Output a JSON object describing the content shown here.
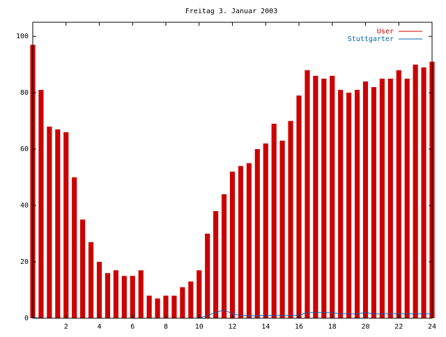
{
  "chart_data": {
    "type": "bar",
    "title": "Freitag 3. Januar 2003",
    "xlabel": "",
    "ylabel": "",
    "xlim": [
      0,
      24
    ],
    "ylim": [
      0,
      105
    ],
    "xticks": [
      "2",
      "4",
      "6",
      "8",
      "10",
      "12",
      "14",
      "16",
      "18",
      "20",
      "22",
      "24"
    ],
    "yticks": [
      "0",
      "20",
      "40",
      "60",
      "80",
      "100"
    ],
    "grid": false,
    "legend_position": "top-right",
    "series": [
      {
        "name": "User",
        "color": "#cc0000",
        "style": "bars",
        "x": [
          0.0,
          0.5,
          1.0,
          1.5,
          2.0,
          2.5,
          3.0,
          3.5,
          4.0,
          4.5,
          5.0,
          5.5,
          6.0,
          6.5,
          7.0,
          7.5,
          8.0,
          8.5,
          9.0,
          9.5,
          10.0,
          10.5,
          11.0,
          11.5,
          12.0,
          12.5,
          13.0,
          13.5,
          14.0,
          14.5,
          15.0,
          15.5,
          16.0,
          16.5,
          17.0,
          17.5,
          18.0,
          18.5,
          19.0,
          19.5,
          20.0,
          20.5,
          21.0,
          21.5,
          22.0,
          22.5,
          23.0,
          23.5,
          24.0
        ],
        "values": [
          97,
          81,
          68,
          67,
          66,
          50,
          35,
          27,
          20,
          16,
          17,
          15,
          15,
          17,
          8,
          7,
          8,
          8,
          11,
          13,
          17,
          30,
          38,
          44,
          52,
          54,
          55,
          60,
          62,
          69,
          63,
          70,
          79,
          88,
          86,
          85,
          86,
          81,
          80,
          81,
          84,
          82,
          85,
          85,
          88,
          85,
          90,
          89,
          91
        ]
      },
      {
        "name": "Stuttgarter",
        "color": "#0066b3",
        "style": "line",
        "x": [
          0.0,
          0.5,
          1.0,
          1.5,
          2.0,
          2.5,
          3.0,
          3.5,
          4.0,
          4.5,
          5.0,
          5.5,
          6.0,
          6.5,
          7.0,
          7.5,
          8.0,
          8.5,
          9.0,
          9.5,
          10.0,
          10.5,
          11.0,
          11.5,
          12.0,
          12.5,
          13.0,
          13.5,
          14.0,
          14.5,
          15.0,
          15.5,
          16.0,
          16.5,
          17.0,
          17.5,
          18.0,
          18.5,
          19.0,
          19.5,
          20.0,
          20.5,
          21.0,
          21.5,
          22.0,
          22.5,
          23.0,
          23.5,
          24.0
        ],
        "values": [
          0.3,
          0,
          0,
          0,
          0,
          0,
          0,
          0,
          0,
          0,
          0,
          0,
          0,
          0,
          0,
          0,
          0,
          0,
          0,
          0,
          0,
          1,
          2,
          3,
          1.5,
          1,
          0.8,
          0.8,
          1,
          1,
          1,
          1,
          1,
          2,
          2,
          2,
          2,
          1.5,
          1.5,
          1.5,
          2,
          1.5,
          1.5,
          1.5,
          1.5,
          1.5,
          1.5,
          1.5,
          1.5
        ]
      }
    ]
  }
}
